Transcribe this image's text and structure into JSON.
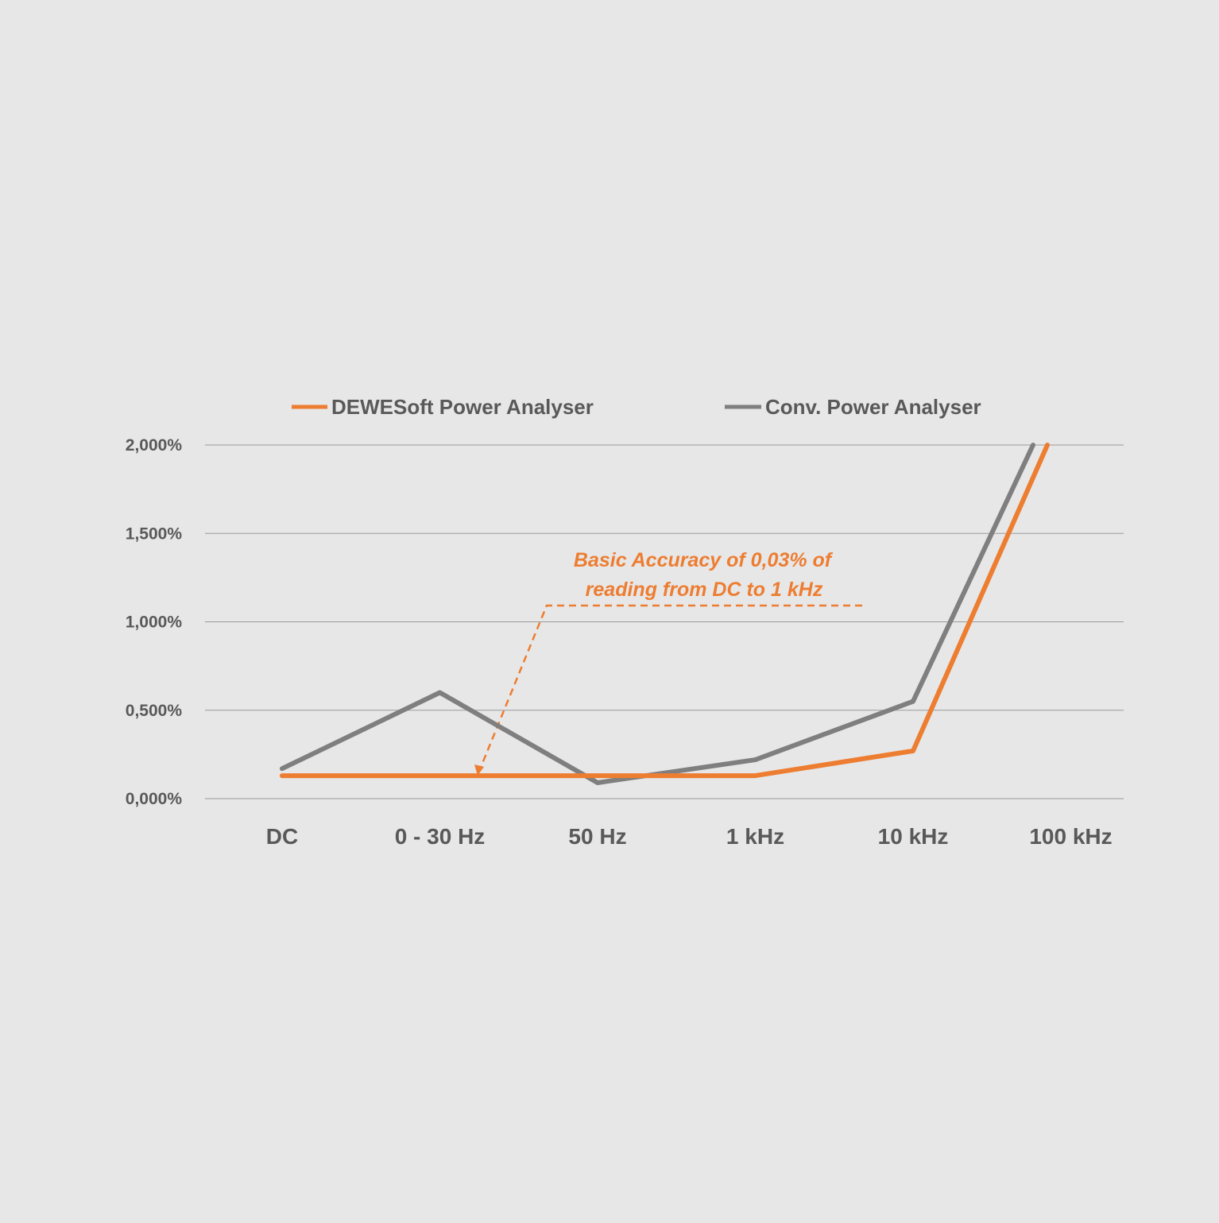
{
  "chart_data": {
    "type": "line",
    "title": "",
    "xlabel": "",
    "ylabel": "",
    "categories": [
      "DC",
      "0 - 30 Hz",
      "50 Hz",
      "1 kHz",
      "10 kHz",
      "100 kHz"
    ],
    "y_tick_labels": [
      "0,000%",
      "0,500%",
      "1,000%",
      "1,500%",
      "2,000%"
    ],
    "ylim": [
      0,
      2.0
    ],
    "grid": true,
    "legend_position": "top",
    "series": [
      {
        "name": "DEWESoft Power Analyser",
        "color": "#ed7d31",
        "values": [
          0.13,
          0.13,
          0.13,
          0.13,
          0.27,
          2.0
        ]
      },
      {
        "name": "Conv. Power Analyser",
        "color": "#7f7f7f",
        "values": [
          0.17,
          0.6,
          0.09,
          0.22,
          0.55,
          2.0
        ]
      }
    ],
    "annotation": {
      "line1": "Basic Accuracy of 0,03% of",
      "line2": "reading from DC to 1 kHz",
      "color": "#ed7d31"
    }
  }
}
